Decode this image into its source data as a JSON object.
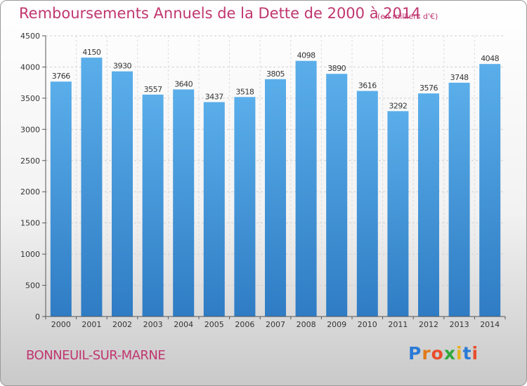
{
  "title": "Remboursements Annuels de la Dette de 2000 à 2014",
  "unit_note": "(en milliers d'€)",
  "commune": "BONNEUIL-SUR-MARNE",
  "brand": {
    "letters": [
      "P",
      "r",
      "o",
      "x",
      "i",
      "t",
      "i"
    ]
  },
  "colors": {
    "bar_top": "#5aaeea",
    "bar_bottom": "#2f7cc4",
    "title": "#c0366f"
  },
  "chart_data": {
    "type": "bar",
    "title": "Remboursements Annuels de la Dette de 2000 à 2014",
    "categories": [
      "2000",
      "2001",
      "2002",
      "2003",
      "2004",
      "2005",
      "2006",
      "2007",
      "2008",
      "2009",
      "2010",
      "2011",
      "2012",
      "2013",
      "2014"
    ],
    "values": [
      3766,
      4150,
      3930,
      3557,
      3640,
      3437,
      3518,
      3805,
      4098,
      3890,
      3616,
      3292,
      3576,
      3748,
      4048
    ],
    "ylim": [
      0,
      4500
    ],
    "yticks": [
      0,
      500,
      1000,
      1500,
      2000,
      2500,
      3000,
      3500,
      4000,
      4500
    ],
    "grid": true,
    "data_labels": true
  }
}
